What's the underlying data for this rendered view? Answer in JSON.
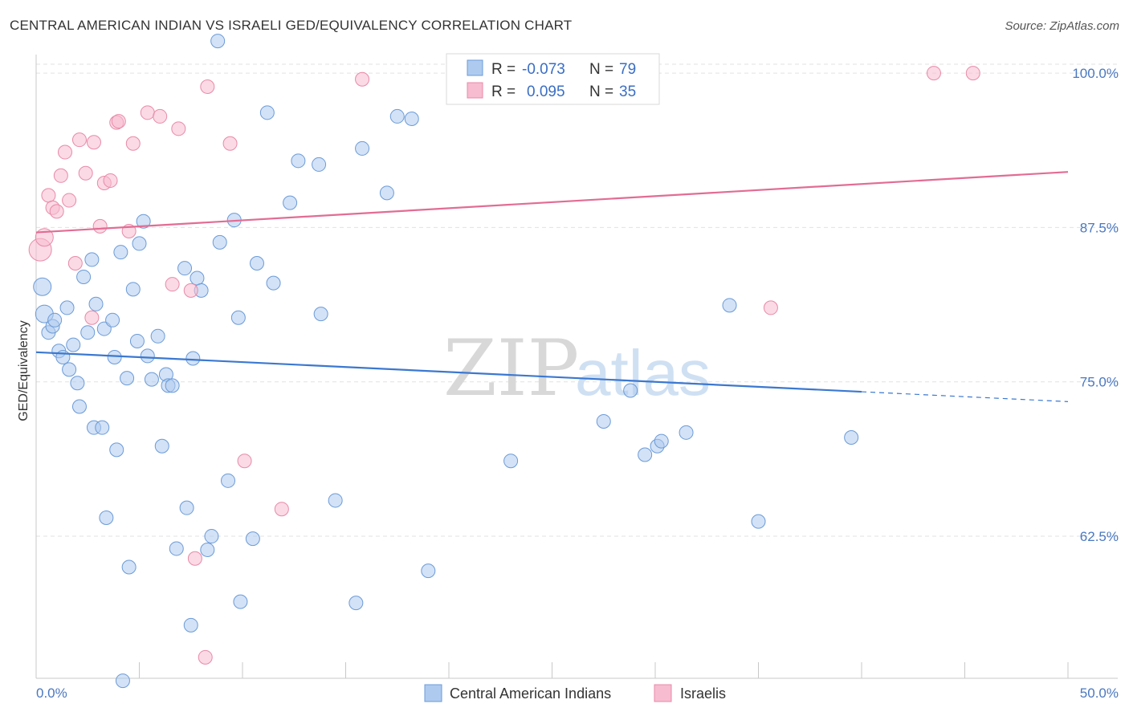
{
  "header": {
    "title": "CENTRAL AMERICAN INDIAN VS ISRAELI GED/EQUIVALENCY CORRELATION CHART",
    "source": "Source: ZipAtlas.com"
  },
  "watermark": {
    "zip": "ZIP",
    "atlas": "atlas"
  },
  "legend": {
    "r_label": "R =",
    "n_label": "N =",
    "rows": [
      {
        "r": "-0.073",
        "n": "79",
        "color": "#aecbef"
      },
      {
        "r": "0.095",
        "n": "35",
        "color": "#f7bcd0"
      }
    ]
  },
  "chart_data": {
    "type": "scatter",
    "title": "CENTRAL AMERICAN INDIAN VS ISRAELI GED/EQUIVALENCY CORRELATION CHART",
    "xlabel": "",
    "ylabel": "GED/Equivalency",
    "xlim": [
      0,
      50
    ],
    "ylim": [
      51,
      101.5
    ],
    "x_tick_labels": [
      "0.0%",
      "50.0%"
    ],
    "y_ticks": [
      62.5,
      75.0,
      87.5,
      100.0
    ],
    "y_tick_labels": [
      "62.5%",
      "75.0%",
      "87.5%",
      "100.0%"
    ],
    "grid": "horizontal dashed",
    "legend_position": "top-center",
    "series": [
      {
        "name": "Central American Indians",
        "color": "#aecbef",
        "stroke": "#6b9bd8",
        "trend": {
          "x": [
            0,
            40,
            50
          ],
          "y": [
            77.4,
            74.2,
            73.4
          ],
          "dashed_from": 40,
          "color": "#3b78d0"
        },
        "points": [
          [
            0.3,
            82.7
          ],
          [
            0.4,
            80.5
          ],
          [
            0.6,
            79.0
          ],
          [
            0.8,
            79.5
          ],
          [
            0.9,
            80.0
          ],
          [
            1.1,
            77.5
          ],
          [
            1.3,
            77.0
          ],
          [
            1.5,
            81.0
          ],
          [
            1.6,
            76.0
          ],
          [
            1.8,
            78.0
          ],
          [
            2.0,
            74.9
          ],
          [
            2.1,
            73.0
          ],
          [
            2.3,
            83.5
          ],
          [
            2.5,
            79.0
          ],
          [
            2.7,
            84.9
          ],
          [
            2.8,
            71.3
          ],
          [
            2.9,
            81.3
          ],
          [
            3.2,
            71.3
          ],
          [
            3.3,
            79.3
          ],
          [
            3.4,
            64.0
          ],
          [
            3.7,
            80.0
          ],
          [
            3.8,
            77.0
          ],
          [
            3.9,
            69.5
          ],
          [
            4.1,
            85.5
          ],
          [
            4.2,
            50.8
          ],
          [
            4.4,
            75.3
          ],
          [
            4.5,
            60.0
          ],
          [
            4.7,
            82.5
          ],
          [
            4.9,
            78.3
          ],
          [
            5.0,
            86.2
          ],
          [
            5.2,
            88.0
          ],
          [
            5.4,
            77.1
          ],
          [
            5.6,
            75.2
          ],
          [
            5.9,
            78.7
          ],
          [
            6.1,
            69.8
          ],
          [
            6.3,
            75.6
          ],
          [
            6.4,
            74.7
          ],
          [
            6.6,
            74.7
          ],
          [
            6.8,
            61.5
          ],
          [
            7.2,
            84.2
          ],
          [
            7.3,
            64.8
          ],
          [
            7.5,
            55.3
          ],
          [
            7.6,
            76.9
          ],
          [
            7.8,
            83.4
          ],
          [
            8.0,
            82.4
          ],
          [
            8.3,
            61.4
          ],
          [
            8.5,
            62.5
          ],
          [
            8.9,
            86.3
          ],
          [
            9.3,
            67.0
          ],
          [
            9.6,
            88.1
          ],
          [
            9.8,
            80.2
          ],
          [
            9.9,
            57.2
          ],
          [
            10.5,
            62.3
          ],
          [
            10.7,
            84.6
          ],
          [
            11.2,
            96.8
          ],
          [
            11.5,
            83.0
          ],
          [
            12.3,
            89.5
          ],
          [
            12.7,
            92.9
          ],
          [
            13.7,
            92.6
          ],
          [
            13.8,
            80.5
          ],
          [
            14.5,
            65.4
          ],
          [
            15.5,
            57.1
          ],
          [
            15.8,
            93.9
          ],
          [
            17.0,
            90.3
          ],
          [
            17.5,
            96.5
          ],
          [
            18.2,
            96.3
          ],
          [
            19.0,
            59.7
          ],
          [
            22.0,
            100.5
          ],
          [
            23.0,
            68.6
          ],
          [
            27.5,
            71.8
          ],
          [
            28.8,
            74.3
          ],
          [
            29.5,
            69.1
          ],
          [
            30.1,
            69.8
          ],
          [
            30.3,
            70.2
          ],
          [
            31.5,
            70.9
          ],
          [
            33.6,
            81.2
          ],
          [
            35.0,
            63.7
          ],
          [
            39.5,
            70.5
          ],
          [
            8.8,
            102.6
          ]
        ]
      },
      {
        "name": "Israelis",
        "color": "#f7bcd0",
        "stroke": "#e88aa8",
        "trend": {
          "x": [
            0,
            50
          ],
          "y": [
            87.1,
            92.0
          ],
          "color": "#e26c94"
        },
        "points": [
          [
            0.2,
            85.7
          ],
          [
            0.4,
            86.7
          ],
          [
            0.6,
            90.1
          ],
          [
            0.8,
            89.1
          ],
          [
            1.0,
            88.8
          ],
          [
            1.2,
            91.7
          ],
          [
            1.4,
            93.6
          ],
          [
            1.6,
            89.7
          ],
          [
            1.9,
            84.6
          ],
          [
            2.1,
            94.6
          ],
          [
            2.4,
            91.9
          ],
          [
            2.7,
            80.2
          ],
          [
            2.8,
            94.4
          ],
          [
            3.1,
            87.6
          ],
          [
            3.3,
            91.1
          ],
          [
            3.6,
            91.3
          ],
          [
            3.9,
            96.0
          ],
          [
            4.0,
            96.1
          ],
          [
            4.5,
            87.2
          ],
          [
            4.7,
            94.3
          ],
          [
            5.4,
            96.8
          ],
          [
            6.0,
            96.5
          ],
          [
            6.6,
            82.9
          ],
          [
            6.9,
            95.5
          ],
          [
            7.5,
            82.4
          ],
          [
            7.7,
            60.7
          ],
          [
            8.2,
            52.7
          ],
          [
            8.3,
            98.9
          ],
          [
            9.4,
            94.3
          ],
          [
            10.1,
            68.6
          ],
          [
            11.9,
            64.7
          ],
          [
            15.8,
            99.5
          ],
          [
            35.6,
            81.0
          ],
          [
            43.5,
            100.0
          ],
          [
            45.4,
            100.0
          ]
        ]
      }
    ]
  },
  "bottom_legend": [
    {
      "label": "Central American Indians",
      "color": "#aecbef"
    },
    {
      "label": "Israelis",
      "color": "#f7bcd0"
    }
  ]
}
